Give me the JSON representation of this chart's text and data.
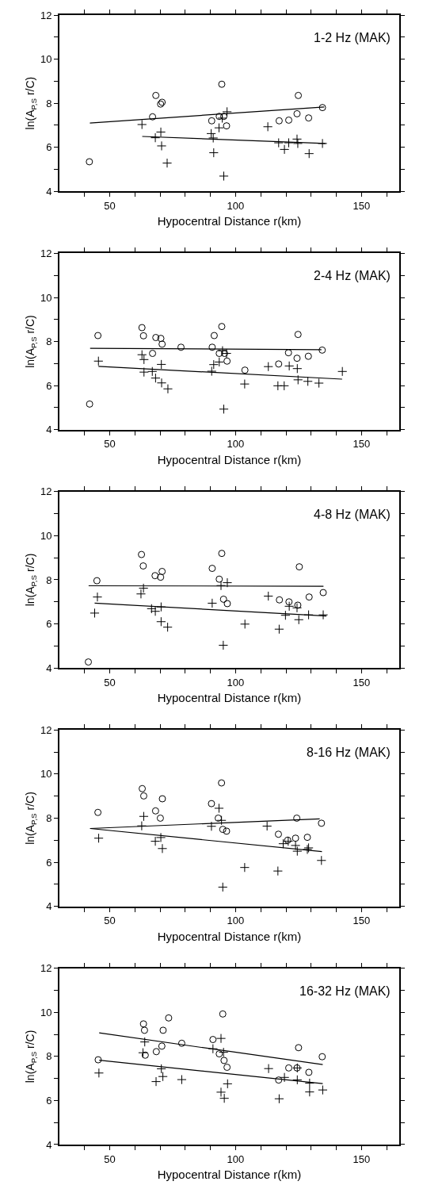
{
  "chart_data": [
    {
      "type": "scatter",
      "title": "1-2 Hz (MAK)",
      "xlabel": "Hypocentral Distance r(km)",
      "ylabel": "ln(A$_{P,S}$ r/C)",
      "xlim": [
        30,
        165
      ],
      "ylim": [
        4,
        12
      ],
      "xticks": [
        {
          "value": 40,
          "label": null
        },
        50,
        {
          "value": 60,
          "label": null
        },
        {
          "value": 70,
          "label": null
        },
        {
          "value": 80,
          "label": null
        },
        {
          "value": 90,
          "label": null
        },
        100,
        {
          "value": 110,
          "label": null
        },
        {
          "value": 120,
          "label": null
        },
        {
          "value": 130,
          "label": null
        },
        {
          "value": 140,
          "label": null
        },
        150,
        {
          "value": 160,
          "label": null
        }
      ],
      "yticks": [
        4,
        {
          "value": 5,
          "label": null
        },
        6,
        {
          "value": 7,
          "label": null
        },
        8,
        {
          "value": 9,
          "label": null
        },
        10,
        {
          "value": 11,
          "label": null
        },
        12
      ],
      "series": [
        {
          "marker": "circle",
          "color": "#000000",
          "x": [
            41.9,
            68.3,
            70.2,
            70.8,
            67,
            90.5,
            93.5,
            95.3,
            94.5,
            96.4,
            117.3,
            121.1,
            124.4,
            124.9,
            129,
            134.5
          ],
          "values": [
            5.34,
            8.35,
            7.96,
            8.04,
            7.38,
            7.2,
            7.4,
            7.4,
            8.86,
            6.97,
            7.2,
            7.23,
            7.52,
            8.35,
            7.33,
            7.8
          ]
        },
        {
          "marker": "cross",
          "color": "#000000",
          "x": [
            62.8,
            68.1,
            70.3,
            70.6,
            72.8,
            90.3,
            91.1,
            91.3,
            93.4,
            94.7,
            96.6,
            95.3,
            112.8,
            117.1,
            119.4,
            121.1,
            124.4,
            124.7,
            129.2,
            134.5
          ],
          "values": [
            7.03,
            6.43,
            6.69,
            6.06,
            5.28,
            6.62,
            6.42,
            5.75,
            6.88,
            7.32,
            7.61,
            4.69,
            6.93,
            6.2,
            5.9,
            6.2,
            6.37,
            6.17,
            5.71,
            6.17
          ]
        },
        {
          "type": "line",
          "marker": "none",
          "line_style": "solid",
          "color": "#000000",
          "x": [
            42.1,
            135.2
          ],
          "values": [
            7.1,
            7.83
          ]
        },
        {
          "type": "line",
          "marker": "none",
          "line_style": "solid",
          "color": "#000000",
          "x": [
            62.9,
            135.7
          ],
          "values": [
            6.49,
            6.17
          ]
        }
      ]
    },
    {
      "type": "scatter",
      "title": "2-4 Hz (MAK)",
      "xlabel": "Hypocentral Distance r(km)",
      "ylabel": "ln(A$_{P,S}$ r/C)",
      "xlim": [
        30,
        165
      ],
      "ylim": [
        4,
        12
      ],
      "xticks": [
        {
          "value": 40,
          "label": null
        },
        50,
        {
          "value": 60,
          "label": null
        },
        {
          "value": 70,
          "label": null
        },
        {
          "value": 80,
          "label": null
        },
        {
          "value": 90,
          "label": null
        },
        100,
        {
          "value": 110,
          "label": null
        },
        {
          "value": 120,
          "label": null
        },
        {
          "value": 130,
          "label": null
        },
        {
          "value": 140,
          "label": null
        },
        150,
        {
          "value": 160,
          "label": null
        }
      ],
      "yticks": [
        4,
        {
          "value": 5,
          "label": null
        },
        6,
        {
          "value": 7,
          "label": null
        },
        8,
        {
          "value": 9,
          "label": null
        },
        10,
        {
          "value": 11,
          "label": null
        },
        12
      ],
      "series": [
        {
          "marker": "circle",
          "color": "#000000",
          "x": [
            42,
            45.3,
            62.8,
            63.4,
            67,
            68.3,
            70.3,
            70.8,
            78.3,
            90.7,
            91.5,
            94.5,
            93.5,
            95.6,
            96.6,
            103.7,
            117.1,
            121,
            124.4,
            124.8,
            128.9,
            134.4
          ],
          "values": [
            5.16,
            8.27,
            8.63,
            8.26,
            7.46,
            8.18,
            8.14,
            7.88,
            7.74,
            7.74,
            8.27,
            8.68,
            7.46,
            7.46,
            7.11,
            6.7,
            6.98,
            7.49,
            7.24,
            8.32,
            7.33,
            7.61
          ]
        },
        {
          "marker": "cross",
          "color": "#000000",
          "x": [
            45.5,
            62.8,
            63.6,
            63.6,
            66.9,
            68.2,
            70.5,
            70.6,
            73.1,
            90.5,
            91.3,
            93.5,
            94.8,
            96.4,
            95.3,
            103.6,
            113,
            116.8,
            119.3,
            121.3,
            124.5,
            124.8,
            128.7,
            133.1,
            142.4
          ],
          "values": [
            7.11,
            7.4,
            7.18,
            6.61,
            6.64,
            6.34,
            6.96,
            6.12,
            5.85,
            6.65,
            6.95,
            7.07,
            7.58,
            7.46,
            4.93,
            6.07,
            6.86,
            5.99,
            5.99,
            6.89,
            6.77,
            6.26,
            6.19,
            6.11,
            6.64
          ]
        },
        {
          "type": "line",
          "marker": "none",
          "line_style": "solid",
          "color": "#000000",
          "x": [
            42.2,
            134.1
          ],
          "values": [
            7.69,
            7.63
          ]
        },
        {
          "type": "line",
          "marker": "none",
          "line_style": "solid",
          "color": "#000000",
          "x": [
            45.5,
            142.3
          ],
          "values": [
            6.87,
            6.29
          ]
        }
      ]
    },
    {
      "type": "scatter",
      "title": "4-8 Hz (MAK)",
      "xlabel": "Hypocentral Distance r(km)",
      "ylabel": "ln(A$_{P,S}$ r/C)",
      "xlim": [
        30,
        165
      ],
      "ylim": [
        4,
        12
      ],
      "xticks": [
        {
          "value": 40,
          "label": null
        },
        50,
        {
          "value": 60,
          "label": null
        },
        {
          "value": 70,
          "label": null
        },
        {
          "value": 80,
          "label": null
        },
        {
          "value": 90,
          "label": null
        },
        100,
        {
          "value": 110,
          "label": null
        },
        {
          "value": 120,
          "label": null
        },
        {
          "value": 130,
          "label": null
        },
        {
          "value": 140,
          "label": null
        },
        150,
        {
          "value": 160,
          "label": null
        }
      ],
      "yticks": [
        4,
        {
          "value": 5,
          "label": null
        },
        6,
        {
          "value": 7,
          "label": null
        },
        8,
        {
          "value": 9,
          "label": null
        },
        10,
        {
          "value": 11,
          "label": null
        },
        12
      ],
      "series": [
        {
          "marker": "circle",
          "color": "#000000",
          "x": [
            41.5,
            44.9,
            62.6,
            63.3,
            68,
            70.2,
            70.8,
            90.7,
            93.5,
            94.5,
            95.2,
            96.7,
            117.4,
            121.2,
            124.7,
            125.3,
            129.2,
            134.8
          ],
          "values": [
            4.27,
            7.96,
            9.15,
            8.63,
            8.19,
            8.12,
            8.38,
            8.52,
            8.03,
            9.2,
            7.12,
            6.92,
            7.09,
            7.0,
            6.85,
            8.59,
            7.22,
            7.42
          ]
        },
        {
          "marker": "cross",
          "color": "#000000",
          "x": [
            44,
            45.1,
            62.4,
            63.4,
            66.6,
            68.1,
            70.4,
            70.4,
            73,
            90.7,
            94.2,
            96.7,
            95.1,
            103.7,
            113,
            117.3,
            119.8,
            121.3,
            124.4,
            125.1,
            129,
            134.8
          ],
          "values": [
            6.49,
            7.22,
            7.36,
            7.62,
            6.69,
            6.57,
            6.77,
            6.1,
            5.85,
            6.94,
            7.74,
            7.87,
            5.03,
            5.99,
            7.26,
            5.76,
            6.39,
            6.8,
            6.73,
            6.19,
            6.41,
            6.41
          ]
        },
        {
          "type": "line",
          "marker": "none",
          "line_style": "solid",
          "color": "#000000",
          "x": [
            41.6,
            134.9
          ],
          "values": [
            7.73,
            7.71
          ]
        },
        {
          "type": "line",
          "marker": "none",
          "line_style": "solid",
          "color": "#000000",
          "x": [
            44,
            136.1
          ],
          "values": [
            6.94,
            6.36
          ]
        }
      ]
    },
    {
      "type": "scatter",
      "title": "8-16 Hz (MAK)",
      "xlabel": "Hypocentral Distance r(km)",
      "ylabel": "ln(A$_{P,S}$ r/C)",
      "xlim": [
        30,
        165
      ],
      "ylim": [
        4,
        12
      ],
      "xticks": [
        {
          "value": 40,
          "label": null
        },
        50,
        {
          "value": 60,
          "label": null
        },
        {
          "value": 70,
          "label": null
        },
        {
          "value": 80,
          "label": null
        },
        {
          "value": 90,
          "label": null
        },
        100,
        {
          "value": 110,
          "label": null
        },
        {
          "value": 120,
          "label": null
        },
        {
          "value": 130,
          "label": null
        },
        {
          "value": 140,
          "label": null
        },
        150,
        {
          "value": 160,
          "label": null
        }
      ],
      "yticks": [
        4,
        {
          "value": 5,
          "label": null
        },
        6,
        {
          "value": 7,
          "label": null
        },
        8,
        {
          "value": 9,
          "label": null
        },
        10,
        {
          "value": 11,
          "label": null
        },
        12
      ],
      "series": [
        {
          "marker": "circle",
          "color": "#000000",
          "x": [
            45.3,
            62.9,
            63.5,
            68.2,
            70.1,
            70.9,
            90.4,
            93.1,
            94.4,
            94.9,
            96.4,
            117,
            120.7,
            123.8,
            124.3,
            128.5,
            134.1
          ],
          "values": [
            8.26,
            9.34,
            9.01,
            8.33,
            8.0,
            8.88,
            8.66,
            8.0,
            9.6,
            7.49,
            7.41,
            7.27,
            7.0,
            7.09,
            8.0,
            7.13,
            7.77
          ]
        },
        {
          "marker": "cross",
          "color": "#000000",
          "x": [
            45.6,
            62.7,
            63.5,
            68.1,
            70.3,
            70.9,
            90.4,
            93.4,
            94.4,
            94.9,
            103.6,
            112.5,
            116.8,
            118.9,
            120.9,
            123.8,
            124.5,
            128.5,
            129,
            134.1
          ],
          "values": [
            7.09,
            7.65,
            8.08,
            6.95,
            7.12,
            6.62,
            7.63,
            8.45,
            7.9,
            4.87,
            5.76,
            7.64,
            5.6,
            6.84,
            6.95,
            6.76,
            6.5,
            6.58,
            6.65,
            6.08
          ]
        },
        {
          "type": "line",
          "marker": "none",
          "line_style": "solid",
          "color": "#000000",
          "x": [
            42.2,
            133.4
          ],
          "values": [
            7.53,
            7.97
          ]
        },
        {
          "type": "line",
          "marker": "none",
          "line_style": "solid",
          "color": "#000000",
          "x": [
            42.2,
            134.3
          ],
          "values": [
            7.53,
            6.48
          ]
        }
      ]
    },
    {
      "type": "scatter",
      "title": "16-32 Hz (MAK)",
      "xlabel": "Hypocentral Distance r(km)",
      "ylabel": "ln(A$_{P,S}$ r/C)",
      "xlim": [
        30,
        165
      ],
      "ylim": [
        4,
        12
      ],
      "xticks": [
        {
          "value": 40,
          "label": null
        },
        50,
        {
          "value": 60,
          "label": null
        },
        {
          "value": 70,
          "label": null
        },
        {
          "value": 80,
          "label": null
        },
        {
          "value": 90,
          "label": null
        },
        100,
        {
          "value": 110,
          "label": null
        },
        {
          "value": 120,
          "label": null
        },
        {
          "value": 130,
          "label": null
        },
        {
          "value": 140,
          "label": null
        },
        150,
        {
          "value": 160,
          "label": null
        }
      ],
      "yticks": [
        4,
        {
          "value": 5,
          "label": null
        },
        6,
        {
          "value": 7,
          "label": null
        },
        8,
        {
          "value": 9,
          "label": null
        },
        10,
        {
          "value": 11,
          "label": null
        },
        12
      ],
      "series": [
        {
          "marker": "circle",
          "color": "#000000",
          "x": [
            45.4,
            63.4,
            63.8,
            64.1,
            68.5,
            70.7,
            71.2,
            73.4,
            78.6,
            91,
            93.5,
            94.9,
            95.4,
            96.6,
            117.1,
            121.1,
            124.4,
            125,
            129.1,
            134.4
          ],
          "values": [
            7.85,
            9.48,
            9.19,
            8.06,
            8.22,
            8.47,
            9.19,
            9.75,
            8.6,
            8.77,
            8.12,
            9.93,
            7.82,
            7.51,
            6.93,
            7.48,
            7.48,
            8.4,
            7.28,
            7.99
          ]
        },
        {
          "marker": "cross",
          "color": "#000000",
          "x": [
            45.7,
            63.9,
            63.2,
            68.4,
            70.5,
            71.1,
            78.6,
            91,
            94.2,
            95.2,
            94.2,
            95.5,
            96.8,
            113.1,
            117.3,
            119.4,
            124.5,
            124.5,
            129.4,
            129.4,
            134.6
          ],
          "values": [
            7.25,
            8.66,
            8.17,
            6.86,
            7.44,
            7.09,
            6.95,
            8.35,
            8.82,
            8.19,
            6.38,
            6.1,
            6.76,
            7.45,
            6.08,
            7.05,
            7.48,
            6.94,
            6.79,
            6.39,
            6.48
          ]
        },
        {
          "type": "line",
          "marker": "none",
          "line_style": "solid",
          "color": "#000000",
          "x": [
            45.8,
            134.6
          ],
          "values": [
            9.07,
            7.63
          ]
        },
        {
          "type": "line",
          "marker": "none",
          "line_style": "solid",
          "color": "#000000",
          "x": [
            45.8,
            134.6
          ],
          "values": [
            7.83,
            6.77
          ]
        }
      ]
    }
  ]
}
